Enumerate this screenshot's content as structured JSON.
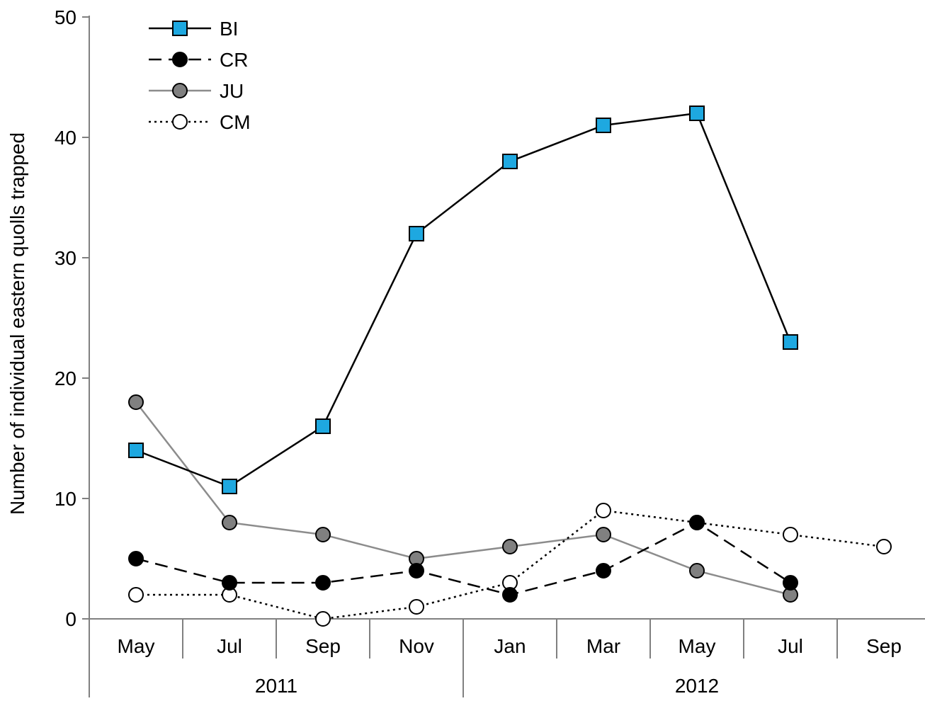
{
  "chart_data": {
    "type": "line",
    "title": "",
    "xlabel": "",
    "ylabel": "Number of individual eastern quolls trapped",
    "ylim": [
      0,
      50
    ],
    "yticks": [
      0,
      10,
      20,
      30,
      40,
      50
    ],
    "grid": false,
    "legend_position": "top-left",
    "categories": [
      "May",
      "Jul",
      "Sep",
      "Nov",
      "Jan",
      "Mar",
      "May",
      "Jul",
      "Sep"
    ],
    "year_groups": [
      {
        "label": "2011",
        "start": 0,
        "end": 3
      },
      {
        "label": "2012",
        "start": 4,
        "end": 8
      }
    ],
    "series": [
      {
        "name": "BI",
        "values": [
          14,
          11,
          16,
          32,
          38,
          41,
          42,
          23,
          null
        ],
        "style": {
          "line": "solid",
          "lineColor": "#000000",
          "marker": "square",
          "markerFill": "#1ea8e0",
          "markerStroke": "#000000"
        }
      },
      {
        "name": "CR",
        "values": [
          5,
          3,
          3,
          4,
          2,
          4,
          8,
          3,
          null
        ],
        "style": {
          "line": "dashed",
          "lineColor": "#000000",
          "marker": "circle",
          "markerFill": "#000000",
          "markerStroke": "#000000"
        }
      },
      {
        "name": "JU",
        "values": [
          18,
          8,
          7,
          5,
          6,
          7,
          4,
          2,
          null
        ],
        "style": {
          "line": "solid",
          "lineColor": "#8c8c8c",
          "marker": "circle",
          "markerFill": "#808080",
          "markerStroke": "#000000"
        }
      },
      {
        "name": "CM",
        "values": [
          2,
          2,
          0,
          1,
          3,
          9,
          8,
          7,
          6
        ],
        "style": {
          "line": "dotted",
          "lineColor": "#000000",
          "marker": "circle",
          "markerFill": "#ffffff",
          "markerStroke": "#000000"
        }
      }
    ]
  }
}
